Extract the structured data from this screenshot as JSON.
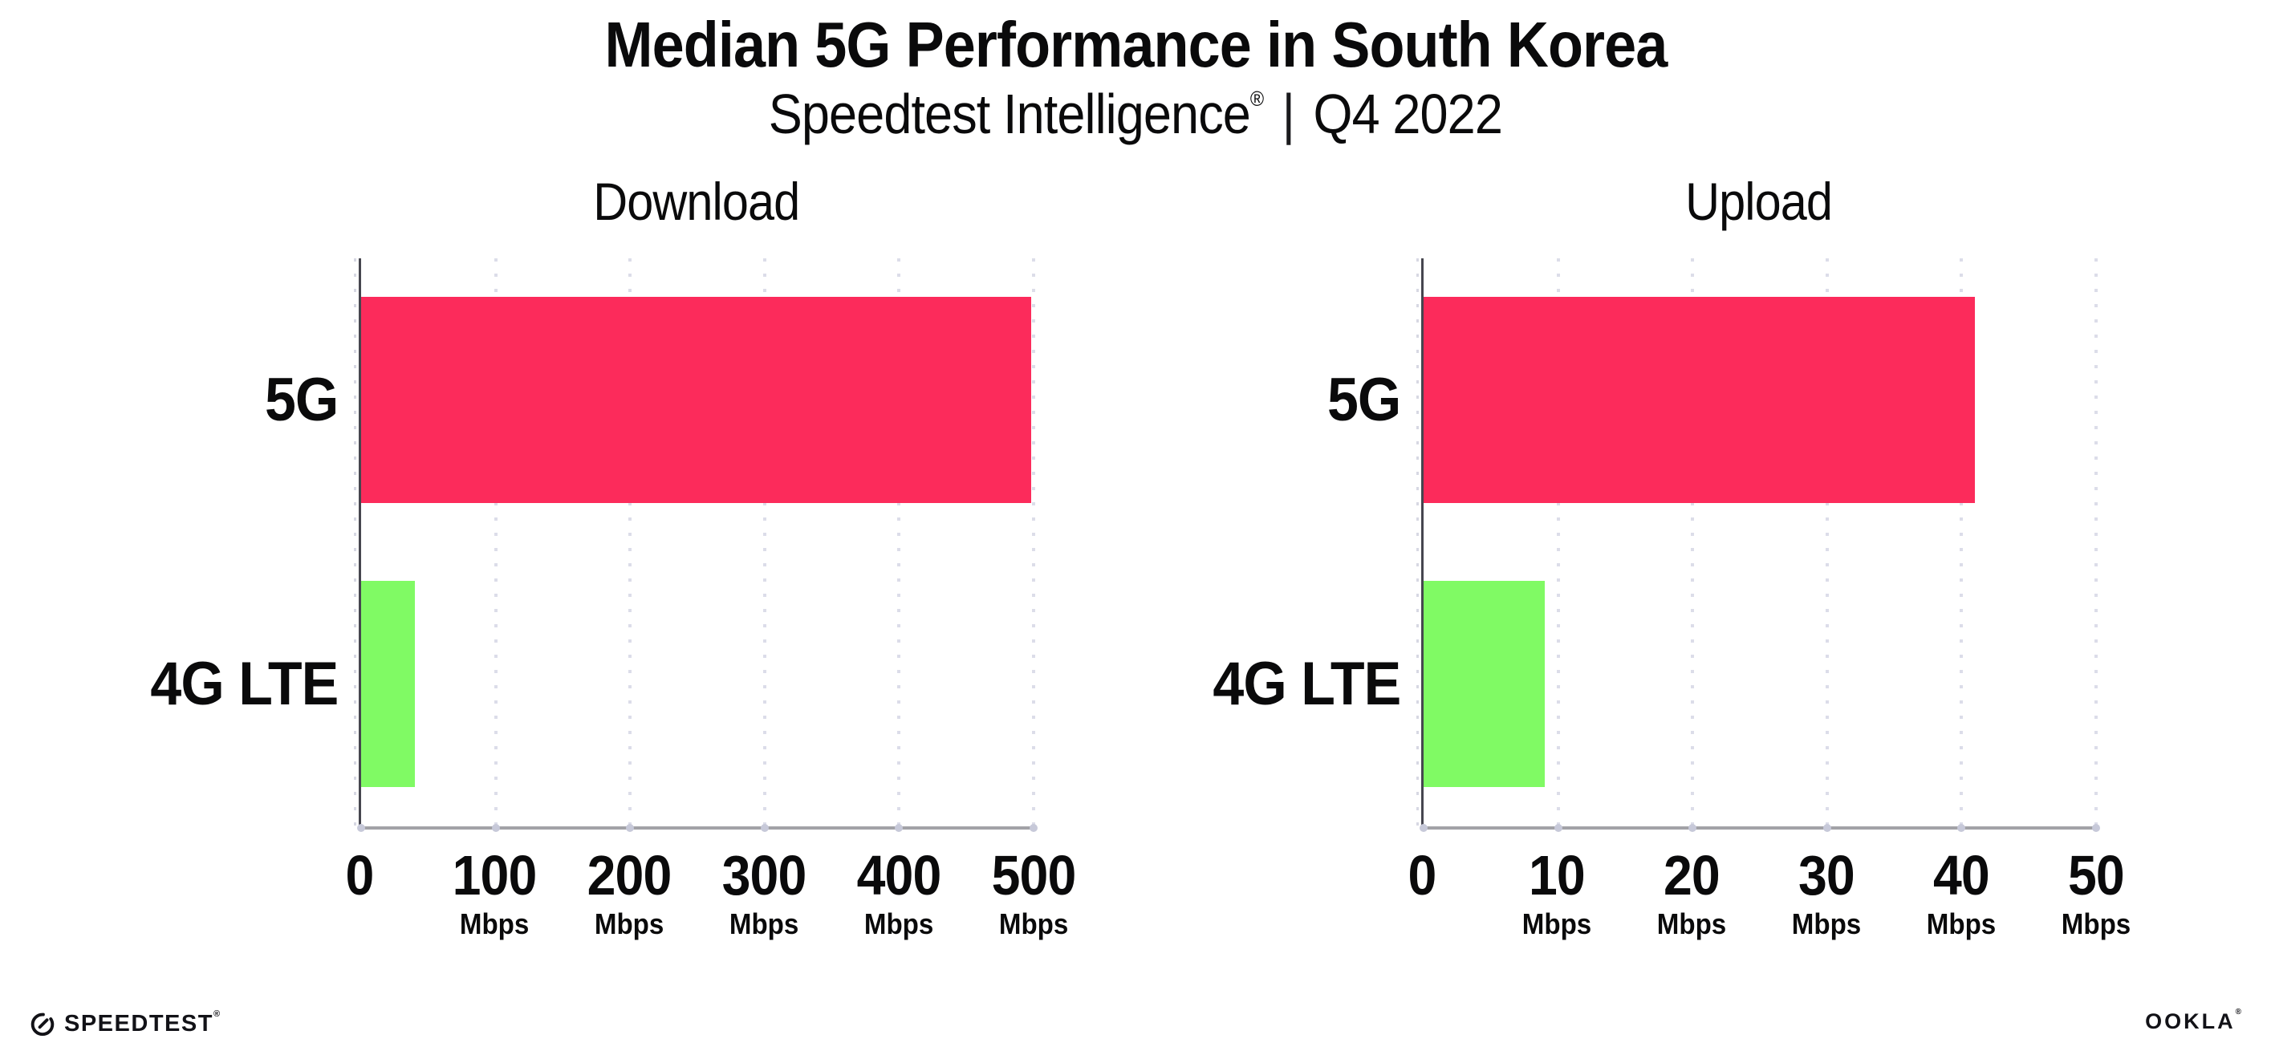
{
  "header": {
    "title": "Median 5G Performance in South Korea",
    "subtitle_brand": "Speedtest Intelligence",
    "subtitle_reg": "®",
    "subtitle_divider": "|",
    "subtitle_period": "Q4 2022"
  },
  "chart_data": [
    {
      "type": "bar",
      "orientation": "horizontal",
      "title": "Download",
      "categories": [
        "5G",
        "4G LTE"
      ],
      "values": [
        498,
        40
      ],
      "unit": "Mbps",
      "xlim": [
        0,
        500
      ],
      "xticks": [
        0,
        100,
        200,
        300,
        400,
        500
      ],
      "bar_colors": [
        "#FC2B5B",
        "#80FA64"
      ],
      "grid": "vertical-dotted",
      "legend": "none"
    },
    {
      "type": "bar",
      "orientation": "horizontal",
      "title": "Upload",
      "categories": [
        "5G",
        "4G LTE"
      ],
      "values": [
        41,
        9
      ],
      "unit": "Mbps",
      "xlim": [
        0,
        50
      ],
      "xticks": [
        0,
        10,
        20,
        30,
        40,
        50
      ],
      "bar_colors": [
        "#FC2B5B",
        "#80FA64"
      ],
      "grid": "vertical-dotted",
      "legend": "none"
    }
  ],
  "colors": {
    "bar_5g": "#FC2B5B",
    "bar_4g_lte": "#80FA64",
    "text": "#0a0a0b"
  },
  "footer": {
    "speedtest_label": "SPEEDTEST",
    "speedtest_reg": "®",
    "ookla_label": "OOKLA",
    "ookla_reg": "®"
  }
}
